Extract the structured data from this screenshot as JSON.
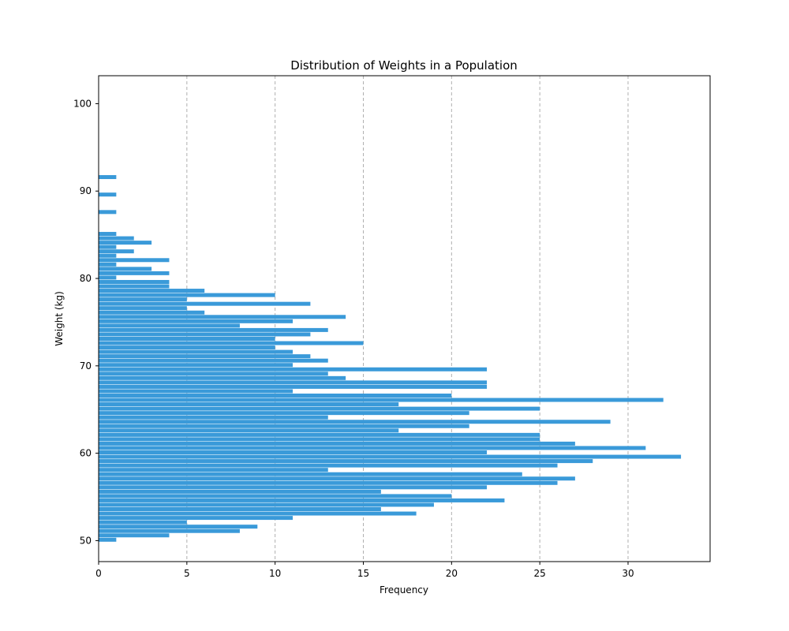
{
  "chart_data": {
    "type": "bar",
    "orientation": "horizontal",
    "title": "Distribution of Weights in a Population",
    "xlabel": "Frequency",
    "ylabel": "Weight (kg)",
    "xlim": [
      0,
      34.65
    ],
    "ylim": [
      47.6,
      103.2
    ],
    "xticks": [
      0,
      5,
      10,
      15,
      20,
      25,
      30
    ],
    "yticks": [
      50,
      60,
      70,
      80,
      90,
      100
    ],
    "grid": "x-dashed",
    "color": "#3a9ad9",
    "bin_start": 49.85,
    "bin_width": 0.5,
    "values": [
      1,
      4,
      8,
      9,
      5,
      11,
      18,
      16,
      19,
      23,
      20,
      16,
      22,
      26,
      27,
      24,
      13,
      26,
      28,
      33,
      22,
      31,
      27,
      25,
      25,
      17,
      21,
      29,
      13,
      21,
      25,
      17,
      32,
      20,
      11,
      22,
      22,
      14,
      13,
      22,
      11,
      13,
      12,
      11,
      10,
      15,
      10,
      12,
      13,
      8,
      11,
      14,
      6,
      5,
      12,
      5,
      10,
      6,
      4,
      4,
      1,
      4,
      3,
      1,
      4,
      1,
      2,
      1,
      3,
      2,
      1,
      0,
      0,
      0,
      0,
      1,
      0,
      0,
      0,
      1,
      0,
      0,
      0,
      1
    ]
  }
}
